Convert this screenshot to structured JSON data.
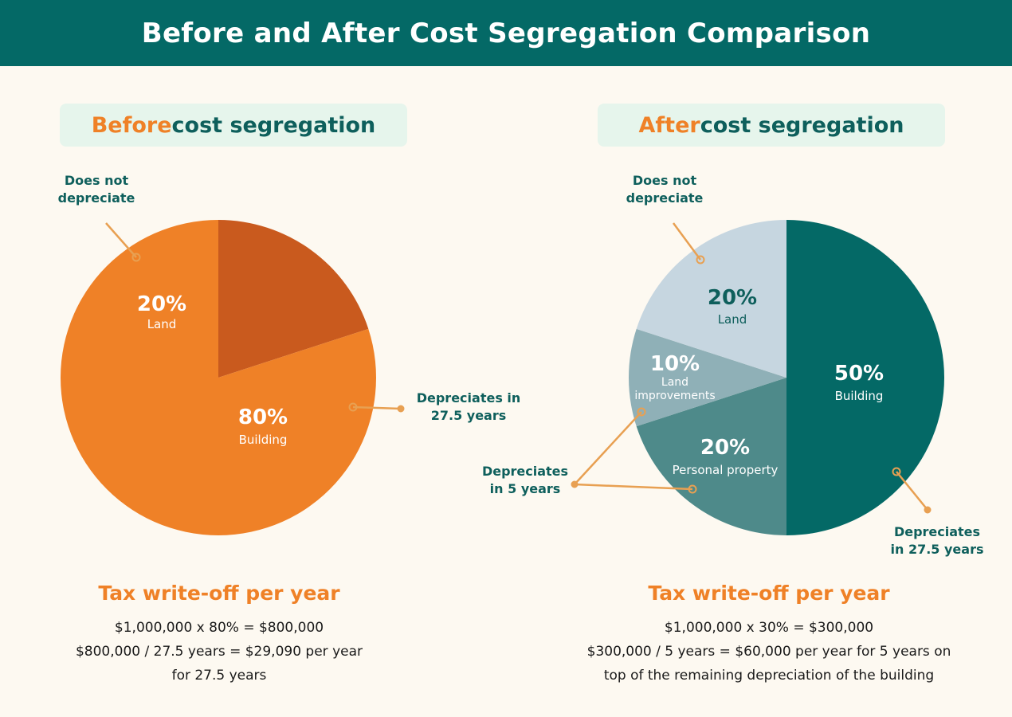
{
  "title": "Before and After Cost Segregation Comparison",
  "colors": {
    "header_bg": "#046966",
    "background": "#fdf9f1",
    "accent_orange": "#ef8127",
    "teal_text": "#0e5f5c"
  },
  "before": {
    "heading_highlight": "Before",
    "heading_rest": " cost segregation",
    "summary_title": "Tax write-off per year",
    "summary_lines": [
      "$1,000,000 x 80% = $800,000",
      "$800,000 / 27.5 years = $29,090 per year",
      "for 27.5 years"
    ],
    "callouts": {
      "no_depreciation": [
        "Does not",
        "depreciate"
      ],
      "depreciates_27": [
        "Depreciates in",
        "27.5 years"
      ]
    }
  },
  "after": {
    "heading_highlight": "After",
    "heading_rest": " cost segregation",
    "summary_title": "Tax write-off per year",
    "summary_lines": [
      "$1,000,000 x 30% = $300,000",
      "$300,000 / 5 years = $60,000 per year for 5 years on",
      "top of the remaining depreciation of the building"
    ],
    "callouts": {
      "no_depreciation": [
        "Does not",
        "depreciate"
      ],
      "depreciates_5": [
        "Depreciates",
        "in 5 years"
      ],
      "depreciates_27": [
        "Depreciates",
        "in 27.5 years"
      ]
    }
  },
  "chart_data": [
    {
      "type": "pie",
      "title": "Before cost segregation",
      "slices": [
        {
          "label": "Land",
          "value": 20,
          "display": "20%",
          "color": "#c95a1e"
        },
        {
          "label": "Building",
          "value": 80,
          "display": "80%",
          "color": "#ef8127"
        }
      ]
    },
    {
      "type": "pie",
      "title": "After cost segregation",
      "slices": [
        {
          "label": "Building",
          "value": 50,
          "display": "50%",
          "color": "#046966"
        },
        {
          "label": "Personal property",
          "value": 20,
          "display": "20%",
          "color": "#4e8a8a"
        },
        {
          "label": "Land improvements",
          "value": 10,
          "display": "10%",
          "color": "#8fb0b7"
        },
        {
          "label": "Land",
          "value": 20,
          "display": "20%",
          "color": "#c6d6e0"
        }
      ]
    }
  ]
}
